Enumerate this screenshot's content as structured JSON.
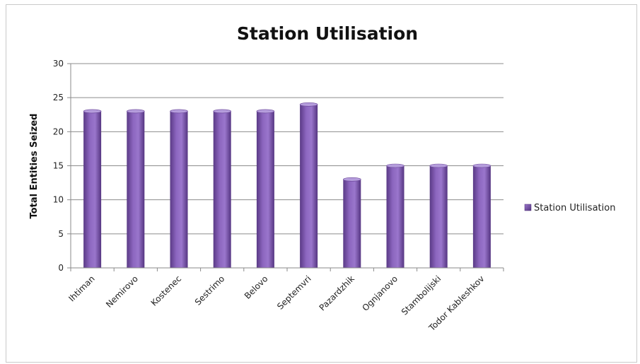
{
  "chart_data": {
    "type": "bar",
    "title": "Station Utilisation",
    "xlabel": "",
    "ylabel": "Total Entities Seized",
    "ylim": [
      0,
      30
    ],
    "yticks": [
      0,
      5,
      10,
      15,
      20,
      25,
      30
    ],
    "grid": true,
    "legend_position": "right",
    "categories": [
      "Ihtiman",
      "Nemirovo",
      "Kostenec",
      "Sestrimo",
      "Belovo",
      "Septemvri",
      "Pazardzhik",
      "Ognjanovo",
      "Stambolijski",
      "Todor Kableshkov"
    ],
    "series": [
      {
        "name": "Station Utilisation",
        "color": "#7a52a8",
        "values": [
          23,
          23,
          23,
          23,
          23,
          24,
          13,
          15,
          15,
          15
        ]
      }
    ]
  }
}
